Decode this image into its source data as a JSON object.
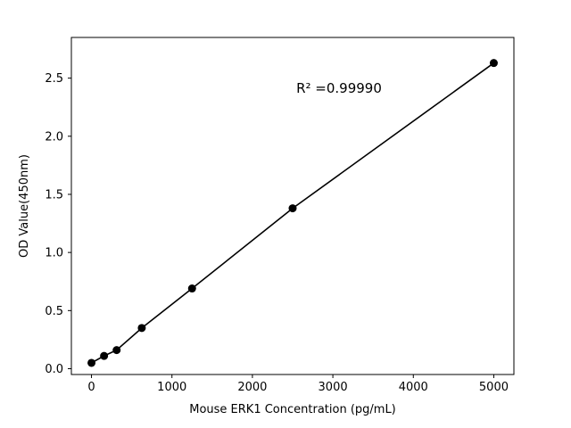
{
  "chart_data": {
    "type": "scatter",
    "title": "",
    "xlabel": "Mouse ERK1 Concentration (pg/mL)",
    "ylabel": "OD Value(450nm)",
    "annotation": "R² =0.99990",
    "x": [
      0,
      156.25,
      312.5,
      625,
      1250,
      2500,
      5000
    ],
    "y": [
      0.05,
      0.11,
      0.16,
      0.35,
      0.69,
      1.38,
      2.63
    ],
    "xlim": [
      -250,
      5250
    ],
    "ylim": [
      -0.05,
      2.85
    ],
    "xticks": [
      0,
      1000,
      2000,
      3000,
      4000,
      5000
    ],
    "xtick_labels": [
      "0",
      "1000",
      "2000",
      "3000",
      "4000",
      "5000"
    ],
    "yticks": [
      0.0,
      0.5,
      1.0,
      1.5,
      2.0,
      2.5
    ],
    "ytick_labels": [
      "0.0",
      "0.5",
      "1.0",
      "1.5",
      "2.0",
      "2.5"
    ],
    "grid": false,
    "legend": "none",
    "line": true,
    "line_color": "#000000",
    "marker_color": "#000000",
    "background_color": "#ffffff"
  }
}
